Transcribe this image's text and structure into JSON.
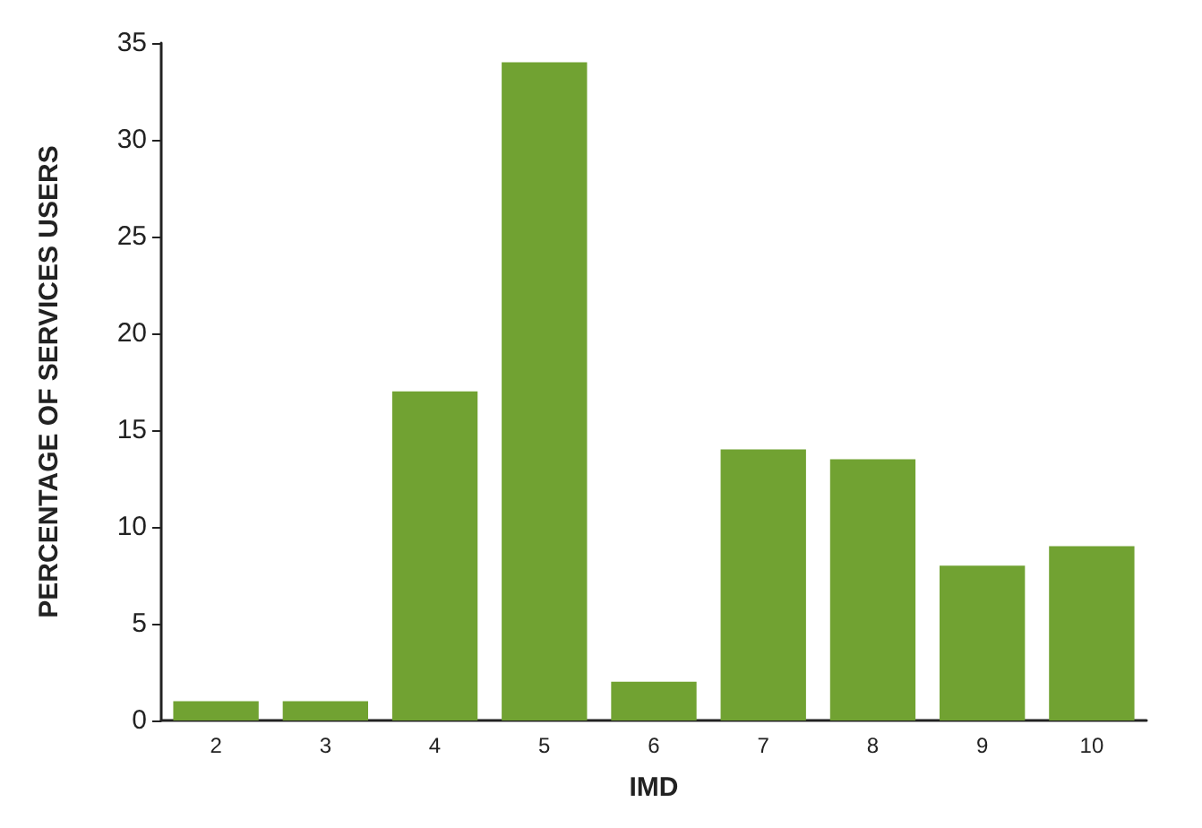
{
  "chart_data": {
    "type": "bar",
    "xlabel": "IMD",
    "ylabel": "PERCENTAGE OF SERVICES USERS",
    "categories": [
      "2",
      "3",
      "4",
      "5",
      "6",
      "7",
      "8",
      "9",
      "10"
    ],
    "values": [
      1,
      1,
      17,
      34,
      2,
      14,
      13.5,
      8,
      9
    ],
    "color": "#71a232",
    "ylim": [
      0,
      35
    ],
    "yticks": [
      0,
      5,
      10,
      15,
      20,
      25,
      30,
      35
    ],
    "grid": false
  }
}
